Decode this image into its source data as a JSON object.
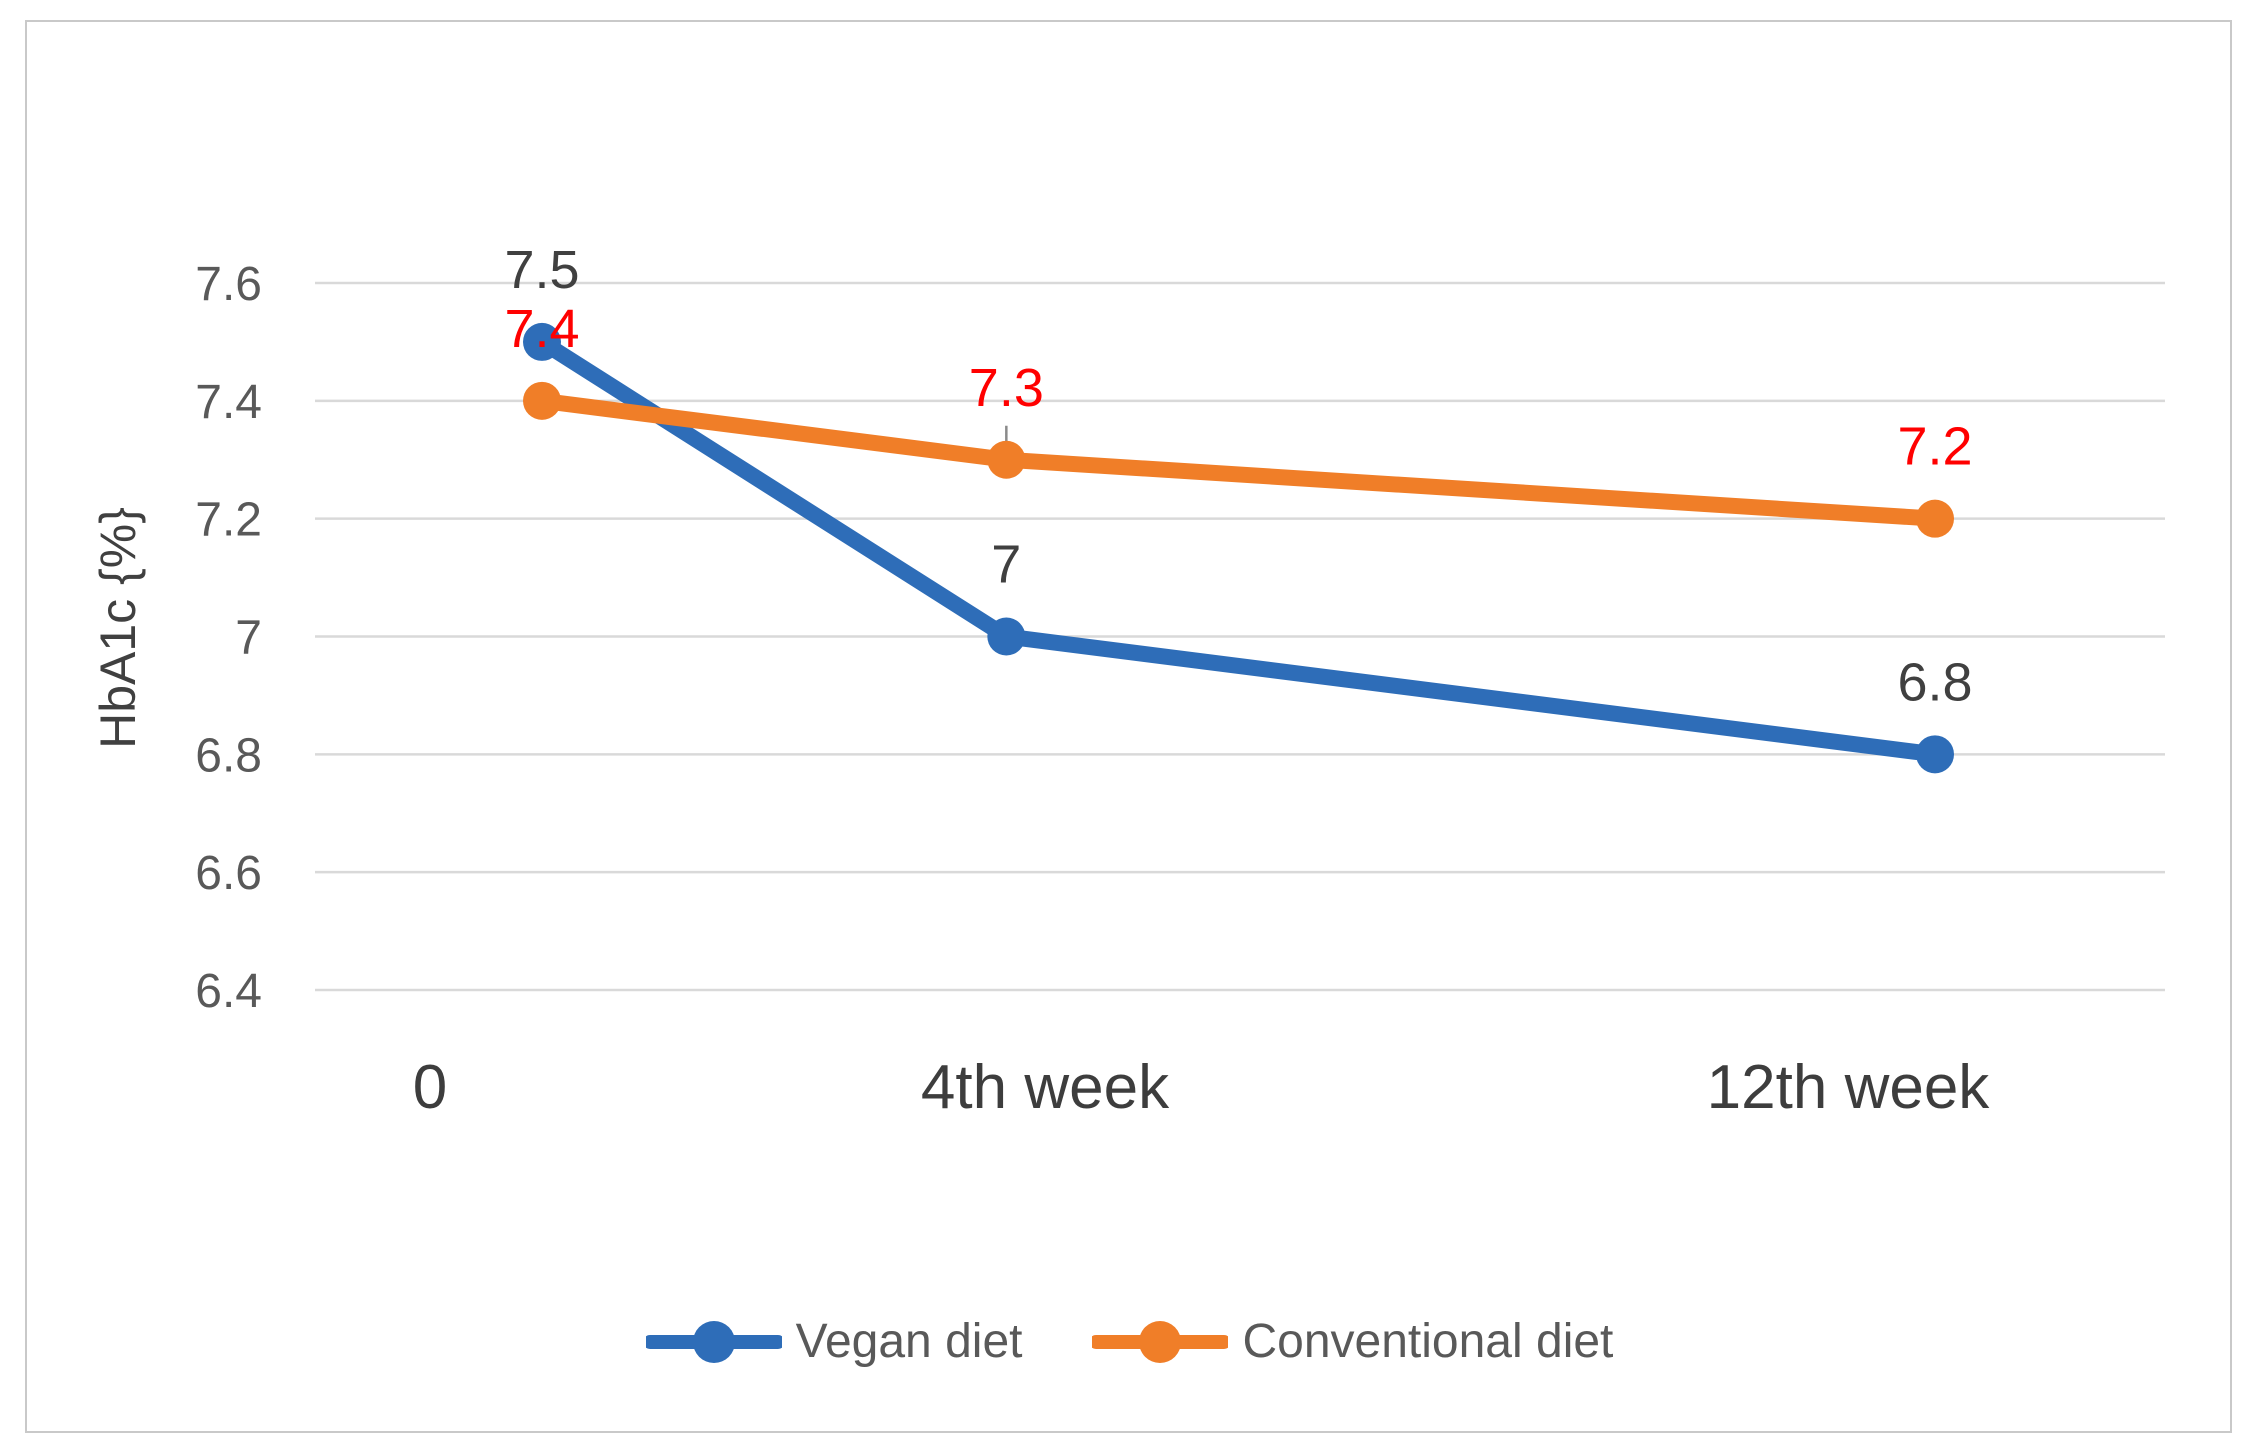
{
  "figure": {
    "background": "#ffffff",
    "frame_border_color": "#c9c9c9",
    "gridline_color": "#d9d9d9",
    "tick_label_color": "#595959",
    "axis_label_color": "#3d3d3d",
    "leader_line_color": "#8a8a8a"
  },
  "chart_data": {
    "type": "line",
    "title": "",
    "xlabel": "",
    "ylabel": "HbA1c {%}",
    "categories": [
      "0",
      "4th week",
      "12th week"
    ],
    "x_weeks": [
      0,
      4,
      12
    ],
    "ylim": [
      6.4,
      7.6
    ],
    "ytick_step": 0.2,
    "yticks": [
      "7.6",
      "7.4",
      "7.2",
      "7",
      "6.8",
      "6.6",
      "6.4"
    ],
    "grid": "horizontal",
    "legend_position": "bottom",
    "series": [
      {
        "name": "Vegan diet",
        "values": [
          7.5,
          7.0,
          6.8
        ],
        "labels": [
          "7.5",
          "7",
          "6.8"
        ],
        "color": "#2e6db8",
        "label_color": "#404040"
      },
      {
        "name": "Conventional diet",
        "values": [
          7.4,
          7.3,
          7.2
        ],
        "labels": [
          "7.4",
          "7.3",
          "7.2"
        ],
        "color": "#f07e28",
        "label_color": "#ff0000"
      }
    ],
    "annotations": [
      {
        "type": "leader-line",
        "series": "Conventional diet",
        "point_index": 1
      }
    ]
  }
}
